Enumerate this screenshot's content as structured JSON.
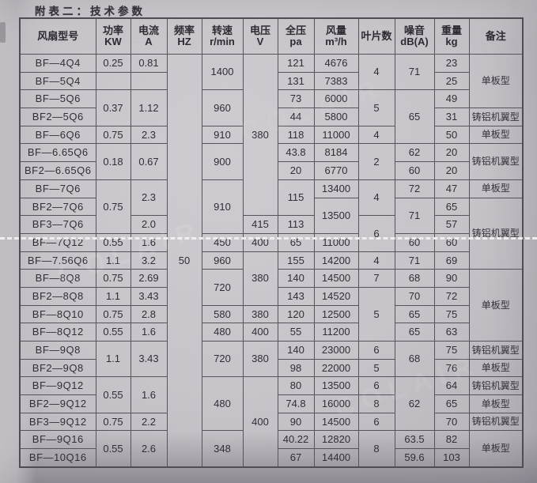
{
  "page": {
    "title": "附表二：技术参数",
    "watermark": "COLAIR"
  },
  "colors": {
    "paper": "#c7c3c8",
    "grid_line": "#57525c",
    "ink": "#2e2b33",
    "splice_line": "#f4f2f3"
  },
  "table": {
    "headers": [
      "风扇型号",
      "功率\nKW",
      "电流\nA",
      "频率\nHZ",
      "转速\nr/min",
      "电压\nV",
      "全压\npa",
      "风量\nm³/h",
      "叶片数",
      "噪音\ndB(A)",
      "重量\nkg",
      "备注"
    ],
    "rows": [
      [
        {
          "t": "BF—4Q4"
        },
        {
          "t": "0.25"
        },
        {
          "t": "0.81"
        },
        {
          "t": "50",
          "rs": 23
        },
        {
          "t": "1400",
          "rs": 2
        },
        {
          "t": "380",
          "rs": 9
        },
        {
          "t": "121"
        },
        {
          "t": "4676"
        },
        {
          "t": "4",
          "rs": 2
        },
        {
          "t": "71",
          "rs": 2
        },
        {
          "t": "23"
        },
        {
          "t": "单板型",
          "rs": 3
        }
      ],
      [
        {
          "t": "BF—5Q4"
        },
        {
          "t": ""
        },
        {
          "t": ""
        },
        {
          "t": "131"
        },
        {
          "t": "7383"
        },
        {
          "t": "25"
        }
      ],
      [
        {
          "t": "BF—5Q6"
        },
        {
          "t": "0.37",
          "rs": 2
        },
        {
          "t": "1.12",
          "rs": 2
        },
        {
          "t": "960",
          "rs": 2
        },
        {
          "t": "73"
        },
        {
          "t": "6000"
        },
        {
          "t": "5",
          "rs": 2
        },
        {
          "t": "65",
          "rs": 3
        },
        {
          "t": "49"
        }
      ],
      [
        {
          "t": "BF2—5Q6"
        },
        {
          "t": "44"
        },
        {
          "t": "5800"
        },
        {
          "t": "31"
        },
        {
          "t": "铸铝机翼型"
        }
      ],
      [
        {
          "t": "BF—6Q6"
        },
        {
          "t": "0.75"
        },
        {
          "t": "2.3"
        },
        {
          "t": "910"
        },
        {
          "t": "118"
        },
        {
          "t": "11000"
        },
        {
          "t": "4"
        },
        {
          "t": "50"
        },
        {
          "t": "单板型"
        }
      ],
      [
        {
          "t": "BF—6.65Q6"
        },
        {
          "t": "0.18",
          "rs": 2
        },
        {
          "t": "0.67",
          "rs": 2
        },
        {
          "t": "900",
          "rs": 2
        },
        {
          "t": "43.8"
        },
        {
          "t": "8184"
        },
        {
          "t": "2",
          "rs": 2
        },
        {
          "t": "62"
        },
        {
          "t": "20"
        },
        {
          "t": "铸铝机翼型",
          "rs": 2
        }
      ],
      [
        {
          "t": "BF2—6.65Q6"
        },
        {
          "t": "20"
        },
        {
          "t": "6770"
        },
        {
          "t": "60"
        },
        {
          "t": "20"
        }
      ],
      [
        {
          "t": "BF—7Q6"
        },
        {
          "t": "0.75",
          "rs": 3
        },
        {
          "t": "2.3",
          "rs": 2
        },
        {
          "t": "910",
          "rs": 3
        },
        {
          "t": "115",
          "rs": 2
        },
        {
          "t": "13400"
        },
        {
          "t": "4",
          "rs": 2
        },
        {
          "t": "72"
        },
        {
          "t": "47"
        },
        {
          "t": "单板型"
        }
      ],
      [
        {
          "t": "BF2—7Q6"
        },
        {
          "t": "13500",
          "rs": 2
        },
        {
          "t": "71",
          "rs": 2
        },
        {
          "t": "65"
        },
        {
          "t": "铸铝机翼型",
          "rs": 4
        }
      ],
      [
        {
          "t": "BF3—7Q6"
        },
        {
          "t": "2.0"
        },
        {
          "t": "415"
        },
        {
          "t": "113"
        },
        {
          "t": "6",
          "rs": 2
        },
        {
          "t": "57"
        }
      ],
      [
        {
          "t": "BF—7Q12"
        },
        {
          "t": "0.55"
        },
        {
          "t": "1.6"
        },
        {
          "t": "450"
        },
        {
          "t": "400"
        },
        {
          "t": "65"
        },
        {
          "t": "11000"
        },
        {
          "t": "60"
        },
        {
          "t": "60"
        }
      ],
      [
        {
          "t": "BF—7.56Q6"
        },
        {
          "t": "1.1"
        },
        {
          "t": "3.2"
        },
        {
          "t": "960"
        },
        {
          "t": "380",
          "rs": 3
        },
        {
          "t": "155"
        },
        {
          "t": "14200"
        },
        {
          "t": "4"
        },
        {
          "t": "71"
        },
        {
          "t": "69"
        }
      ],
      [
        {
          "t": "BF—8Q8"
        },
        {
          "t": "0.75"
        },
        {
          "t": "2.69"
        },
        {
          "t": "720",
          "rs": 2
        },
        {
          "t": "140"
        },
        {
          "t": "14500"
        },
        {
          "t": "7"
        },
        {
          "t": "68"
        },
        {
          "t": "90"
        },
        {
          "t": "单板型",
          "rs": 4
        }
      ],
      [
        {
          "t": "BF2—8Q8"
        },
        {
          "t": "1.1"
        },
        {
          "t": "3.43"
        },
        {
          "t": "143"
        },
        {
          "t": "14520"
        },
        {
          "t": "5",
          "rs": 3
        },
        {
          "t": "70"
        },
        {
          "t": "72"
        }
      ],
      [
        {
          "t": "BF—8Q10"
        },
        {
          "t": "0.75"
        },
        {
          "t": "2.8"
        },
        {
          "t": "580"
        },
        {
          "t": "380"
        },
        {
          "t": "120"
        },
        {
          "t": "12500"
        },
        {
          "t": "65"
        },
        {
          "t": "75"
        }
      ],
      [
        {
          "t": "BF—8Q12"
        },
        {
          "t": "0.55"
        },
        {
          "t": "1.6"
        },
        {
          "t": "480"
        },
        {
          "t": "400"
        },
        {
          "t": "55"
        },
        {
          "t": "11200"
        },
        {
          "t": "65"
        },
        {
          "t": "63"
        }
      ],
      [
        {
          "t": "BF—9Q8"
        },
        {
          "t": "1.1",
          "rs": 2
        },
        {
          "t": "3.43",
          "rs": 2
        },
        {
          "t": "720",
          "rs": 2
        },
        {
          "t": "380",
          "rs": 2
        },
        {
          "t": "140"
        },
        {
          "t": "23000"
        },
        {
          "t": "6"
        },
        {
          "t": "68",
          "rs": 2
        },
        {
          "t": "75"
        },
        {
          "t": "铸铝机翼型"
        }
      ],
      [
        {
          "t": "BF2—9Q8"
        },
        {
          "t": "98"
        },
        {
          "t": "22000"
        },
        {
          "t": "5"
        },
        {
          "t": "76"
        },
        {
          "t": "单板型"
        }
      ],
      [
        {
          "t": "BF—9Q12"
        },
        {
          "t": "0.55",
          "rs": 2
        },
        {
          "t": "1.6",
          "rs": 2
        },
        {
          "t": "480",
          "rs": 3
        },
        {
          "t": "400",
          "rs": 5
        },
        {
          "t": "80"
        },
        {
          "t": "13500"
        },
        {
          "t": "6"
        },
        {
          "t": "62",
          "rs": 3
        },
        {
          "t": "64"
        },
        {
          "t": "铸铝机翼型"
        }
      ],
      [
        {
          "t": "BF2—9Q12"
        },
        {
          "t": "74.8"
        },
        {
          "t": "16000"
        },
        {
          "t": "8"
        },
        {
          "t": "65"
        },
        {
          "t": "单板型"
        }
      ],
      [
        {
          "t": "BF3—9Q12"
        },
        {
          "t": "0.75"
        },
        {
          "t": "2.2"
        },
        {
          "t": "90"
        },
        {
          "t": "14500"
        },
        {
          "t": "6"
        },
        {
          "t": "70"
        },
        {
          "t": "铸铝机翼型"
        }
      ],
      [
        {
          "t": "BF—9Q16"
        },
        {
          "t": "0.55",
          "rs": 2
        },
        {
          "t": "2.6",
          "rs": 2
        },
        {
          "t": "348",
          "rs": 2
        },
        {
          "t": "40.22"
        },
        {
          "t": "12820"
        },
        {
          "t": "8",
          "rs": 2
        },
        {
          "t": "63.5"
        },
        {
          "t": "82"
        },
        {
          "t": "单板型",
          "rs": 2
        }
      ],
      [
        {
          "t": "BF—10Q16"
        },
        {
          "t": "67"
        },
        {
          "t": "14400"
        },
        {
          "t": "59.6"
        },
        {
          "t": "103"
        }
      ]
    ]
  }
}
